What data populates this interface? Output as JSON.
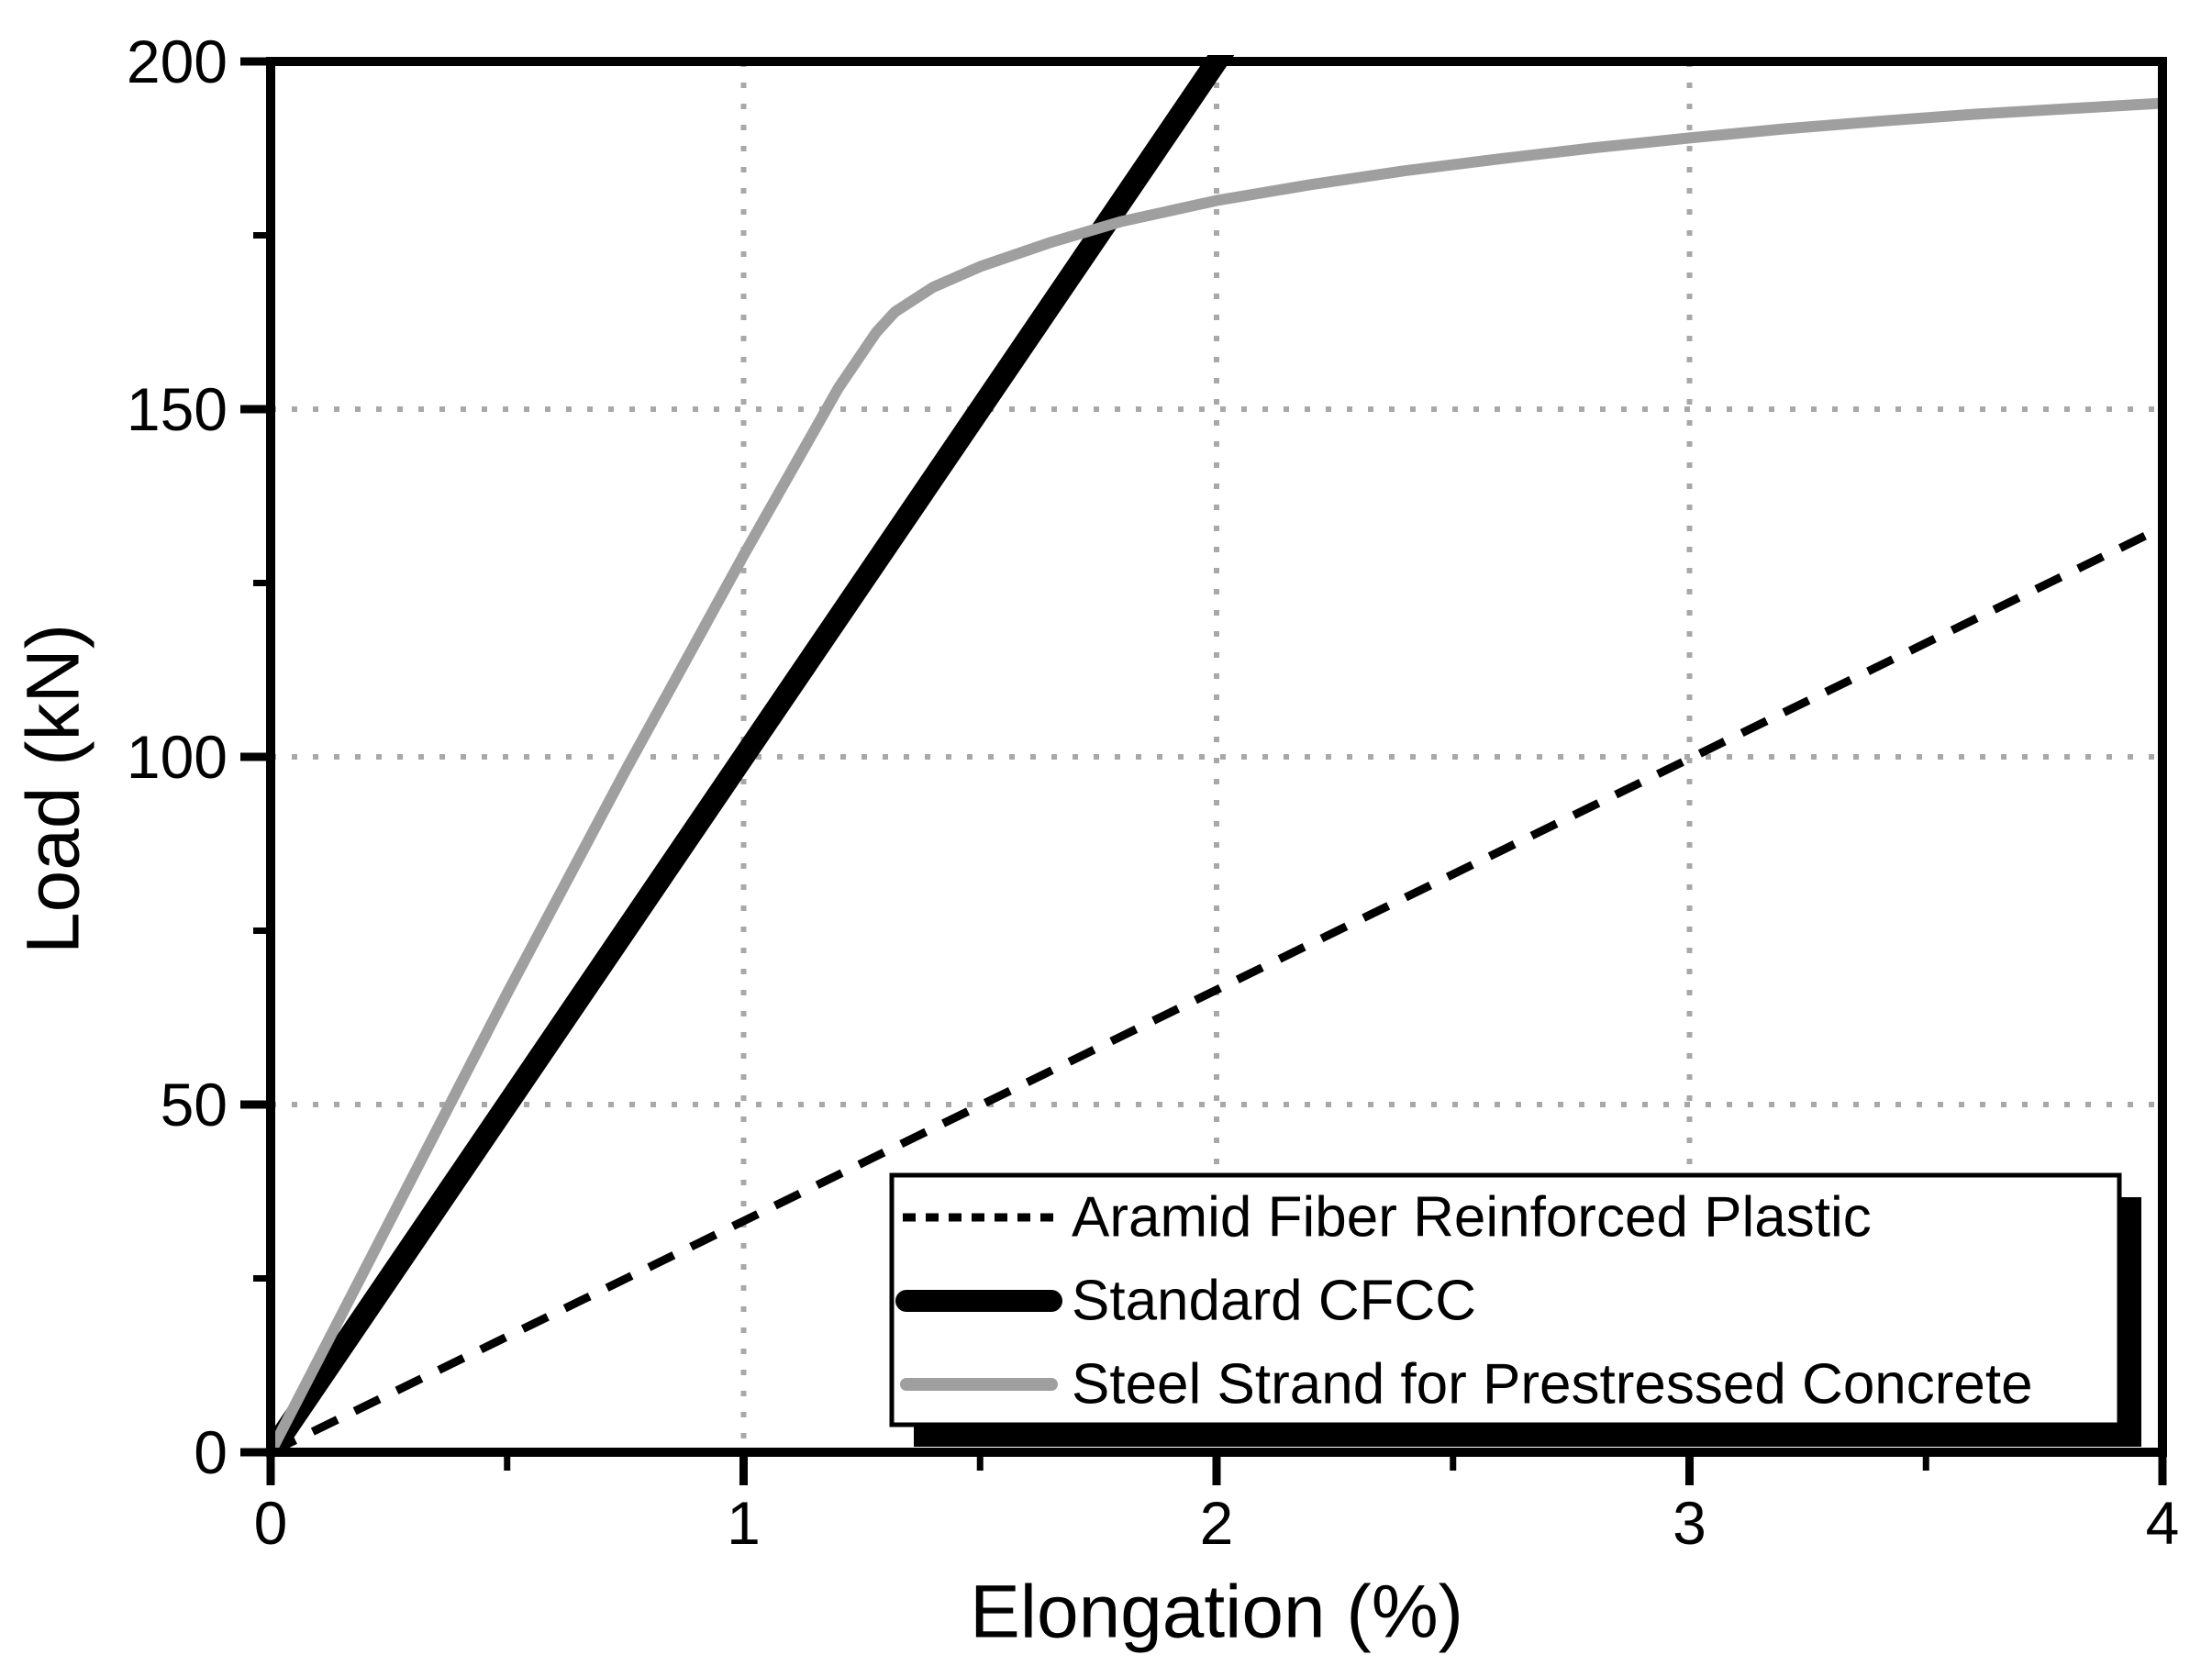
{
  "figure": {
    "background": "#ffffff",
    "axis_color": "#000000"
  },
  "chart_data": {
    "type": "line",
    "title": "",
    "xlabel": "Elongation (%)",
    "ylabel": "Load (kN)",
    "xlim": [
      0,
      4
    ],
    "ylim": [
      0,
      200
    ],
    "x_major_ticks": [
      0,
      1,
      2,
      3,
      4
    ],
    "x_minor_ticks": [
      0.5,
      1.5,
      2.5,
      3.5
    ],
    "y_major_ticks": [
      0,
      50,
      100,
      150,
      200
    ],
    "y_minor_ticks": [
      25,
      75,
      125,
      175
    ],
    "grid": {
      "show": true,
      "style": "dotted",
      "color": "#a8a8a8",
      "x_lines": [
        1,
        2,
        3
      ],
      "y_lines": [
        50,
        100,
        150
      ]
    },
    "legend": {
      "position": "bottom-right",
      "shadow": true,
      "background": "#ffffff",
      "border_color": "#000000",
      "shadow_color": "#000000"
    },
    "series": [
      {
        "name": "Aramid Fiber Reinforced Plastic",
        "color": "#000000",
        "line_style": "dashed",
        "line_width": 9,
        "points": [
          [
            0,
            0
          ],
          [
            4,
            133
          ]
        ]
      },
      {
        "name": "Standard CFCC",
        "color": "#000000",
        "line_style": "solid",
        "line_width": 24,
        "clipped_at_ymax": true,
        "points": [
          [
            0,
            0
          ],
          [
            2.0,
            200
          ]
        ]
      },
      {
        "name": "Steel Strand for Prestressed Concrete",
        "color": "#9f9f9f",
        "line_style": "solid",
        "line_width": 12,
        "points": [
          [
            0,
            0
          ],
          [
            0.25,
            33
          ],
          [
            0.5,
            66
          ],
          [
            0.75,
            98
          ],
          [
            1.0,
            129
          ],
          [
            1.1,
            141
          ],
          [
            1.2,
            153
          ],
          [
            1.28,
            161
          ],
          [
            1.32,
            164
          ],
          [
            1.4,
            167.5
          ],
          [
            1.5,
            170.5
          ],
          [
            1.65,
            174
          ],
          [
            1.8,
            177
          ],
          [
            2.0,
            180
          ],
          [
            2.2,
            182.3
          ],
          [
            2.4,
            184.3
          ],
          [
            2.6,
            186
          ],
          [
            2.8,
            187.6
          ],
          [
            3.0,
            189
          ],
          [
            3.2,
            190.3
          ],
          [
            3.4,
            191.4
          ],
          [
            3.6,
            192.4
          ],
          [
            3.8,
            193.2
          ],
          [
            4.0,
            194
          ]
        ]
      }
    ]
  }
}
